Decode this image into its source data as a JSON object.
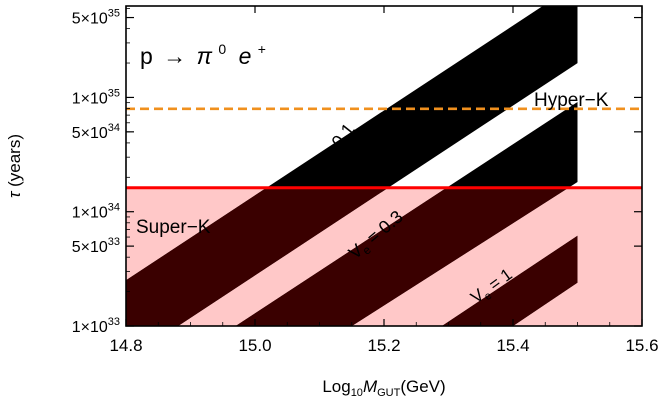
{
  "chart_data": {
    "type": "area",
    "title": "p → π⁰ e⁺",
    "title_parts": {
      "p": "p",
      "arrow": "→",
      "pi": "π",
      "pi_sup": "0",
      "e": "e",
      "e_sup": "+"
    },
    "xlabel": {
      "prefix": "Log",
      "sub10": "10",
      "M": "M",
      "subGUT": "GUT",
      "unit": "(GeV)"
    },
    "ylabel": {
      "tau": "τ",
      "unit": " (years)"
    },
    "xlim": [
      14.8,
      15.6
    ],
    "ylim_log10": [
      33,
      35.8
    ],
    "y_scale": "log",
    "x_ticks": [
      {
        "value": 14.8,
        "label": "14.8"
      },
      {
        "value": 15.0,
        "label": "15.0"
      },
      {
        "value": 15.2,
        "label": "15.2"
      },
      {
        "value": 15.4,
        "label": "15.4"
      },
      {
        "value": 15.6,
        "label": "15.6"
      }
    ],
    "y_ticks": [
      {
        "log10": 33,
        "mant": "1",
        "exp": "33"
      },
      {
        "log10": 33.69897,
        "mant": "5",
        "exp": "33"
      },
      {
        "log10": 34,
        "mant": "1",
        "exp": "34"
      },
      {
        "log10": 34.69897,
        "mant": "5",
        "exp": "34"
      },
      {
        "log10": 35,
        "mant": "1",
        "exp": "35"
      },
      {
        "log10": 35.69897,
        "mant": "5",
        "exp": "35"
      }
    ],
    "series": [
      {
        "name": "V_e = 0.1",
        "label_text": "V",
        "label_sub": "e",
        "label_val": " = 0.1",
        "color": "#000000",
        "upper": [
          [
            14.8,
            33.4
          ],
          [
            15.5,
            36.0
          ]
        ],
        "lower": [
          [
            14.8,
            32.7
          ],
          [
            15.5,
            35.3
          ]
        ]
      },
      {
        "name": "V_e = 0.3",
        "label_text": "V",
        "label_sub": "e",
        "label_val": " = 0.3",
        "color": "#000000",
        "upper": [
          [
            14.97,
            33.0
          ],
          [
            15.5,
            34.96
          ]
        ],
        "lower": [
          [
            15.15,
            33.0
          ],
          [
            15.5,
            34.26
          ]
        ]
      },
      {
        "name": "V_e = 1",
        "label_text": "V",
        "label_sub": "e",
        "label_val": " = 1",
        "color": "#000000",
        "upper": [
          [
            15.29,
            33.0
          ],
          [
            15.5,
            33.79
          ]
        ],
        "lower": [
          [
            15.4,
            33.0
          ],
          [
            15.5,
            33.38
          ]
        ]
      }
    ],
    "limits": [
      {
        "name": "Super-K",
        "label": "Super−K",
        "log10_tau": 34.21,
        "color": "#ff0000",
        "style": "solid",
        "fill": "#ffc8c8"
      },
      {
        "name": "Hyper-K",
        "label": "Hyper−K",
        "log10_tau": 34.9,
        "color": "#f0901e",
        "style": "dashed"
      }
    ],
    "grid": false,
    "legend": "none"
  }
}
